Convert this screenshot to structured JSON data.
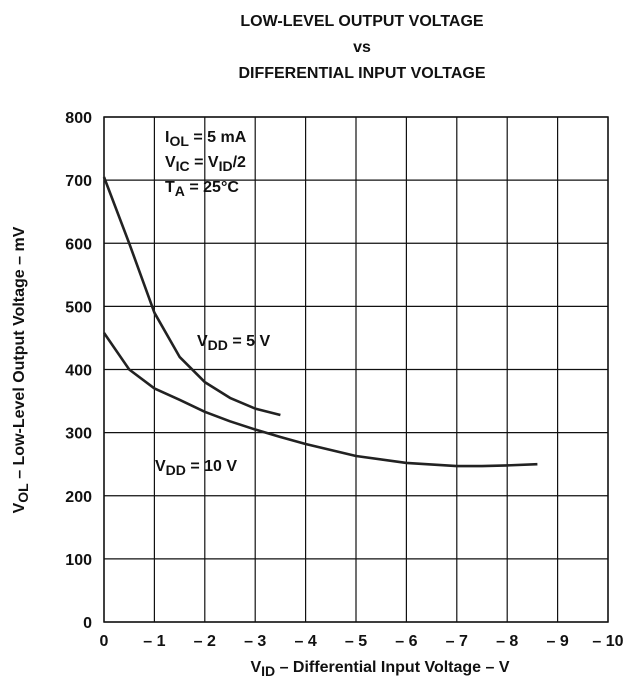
{
  "chart_data": {
    "type": "line",
    "title": [
      "LOW-LEVEL OUTPUT VOLTAGE",
      "vs",
      "DIFFERENTIAL INPUT VOLTAGE"
    ],
    "x_label": [
      {
        "text": "V"
      },
      {
        "sub": "ID"
      },
      {
        "text": " – Differential Input Voltage – V"
      }
    ],
    "y_label": [
      {
        "text": "V"
      },
      {
        "sub": "OL"
      },
      {
        "text": " – Low-Level Output Voltage – mV"
      }
    ],
    "annotations": [
      [
        {
          "text": "I"
        },
        {
          "sub": "OL"
        },
        {
          "text": " = 5 mA"
        }
      ],
      [
        {
          "text": "V"
        },
        {
          "sub": "IC"
        },
        {
          "text": " = V"
        },
        {
          "sub": "ID"
        },
        {
          "text": "/2"
        }
      ],
      [
        {
          "text": "T"
        },
        {
          "sub": "A"
        },
        {
          "text": " = 25°C"
        }
      ]
    ],
    "xlim": [
      0,
      -10
    ],
    "xticks": [
      0,
      {
        "value": -1,
        "label": "– 1"
      },
      {
        "value": -2,
        "label": "– 2"
      },
      {
        "value": -3,
        "label": "– 3"
      },
      {
        "value": -4,
        "label": "– 4"
      },
      {
        "value": -5,
        "label": "– 5"
      },
      {
        "value": -6,
        "label": "– 6"
      },
      {
        "value": -7,
        "label": "– 7"
      },
      {
        "value": -8,
        "label": "– 8"
      },
      {
        "value": -9,
        "label": "– 9"
      },
      {
        "value": -10,
        "label": "– 10"
      }
    ],
    "ylim": [
      0,
      800
    ],
    "yticks": [
      0,
      100,
      200,
      300,
      400,
      500,
      600,
      700,
      800
    ],
    "grid": true,
    "series": [
      {
        "label": [
          {
            "text": "V"
          },
          {
            "sub": "DD"
          },
          {
            "text": " = 5 V"
          }
        ],
        "color": "#222222",
        "x": [
          0,
          -0.5,
          -1,
          -1.5,
          -2,
          -2.5,
          -3,
          -3.5
        ],
        "values": [
          705,
          600,
          490,
          420,
          380,
          355,
          338,
          328
        ]
      },
      {
        "label": [
          {
            "text": "V"
          },
          {
            "sub": "DD"
          },
          {
            "text": " = 10 V"
          }
        ],
        "color": "#222222",
        "x": [
          0,
          -0.5,
          -1,
          -1.5,
          -2,
          -2.5,
          -3,
          -3.5,
          -4,
          -5,
          -6,
          -7,
          -7.5,
          -8,
          -8.6
        ],
        "values": [
          458,
          400,
          370,
          352,
          333,
          318,
          305,
          293,
          282,
          263,
          252,
          247,
          247,
          248,
          250
        ]
      }
    ]
  }
}
